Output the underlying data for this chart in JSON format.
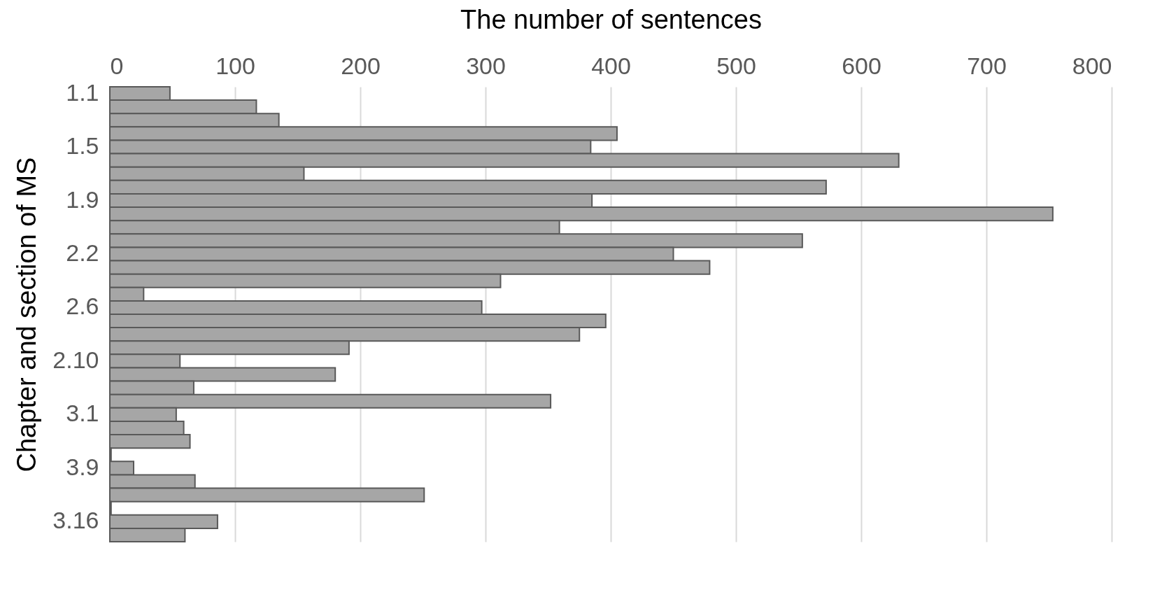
{
  "chart_data": {
    "type": "bar",
    "orientation": "horizontal",
    "xlabel": "The number of sentences",
    "ylabel": "Chapter and section of MS",
    "categories": [
      "1.1",
      null,
      null,
      null,
      "1.5",
      null,
      null,
      null,
      "1.9",
      null,
      null,
      null,
      "2.2",
      null,
      null,
      null,
      "2.6",
      null,
      null,
      null,
      "2.10",
      null,
      null,
      null,
      "3.1",
      null,
      null,
      null,
      "3.9",
      null,
      null,
      null,
      "3.16",
      null
    ],
    "values": [
      48,
      117,
      135,
      405,
      384,
      630,
      155,
      572,
      385,
      753,
      359,
      553,
      450,
      479,
      312,
      27,
      297,
      396,
      375,
      191,
      56,
      180,
      67,
      352,
      53,
      59,
      64,
      1,
      19,
      68,
      251,
      1,
      86,
      60
    ],
    "color": "#a6a6a6",
    "xlim": [
      0,
      800
    ],
    "xticks": [
      0,
      100,
      200,
      300,
      400,
      500,
      600,
      700,
      800
    ],
    "grid": "x"
  }
}
